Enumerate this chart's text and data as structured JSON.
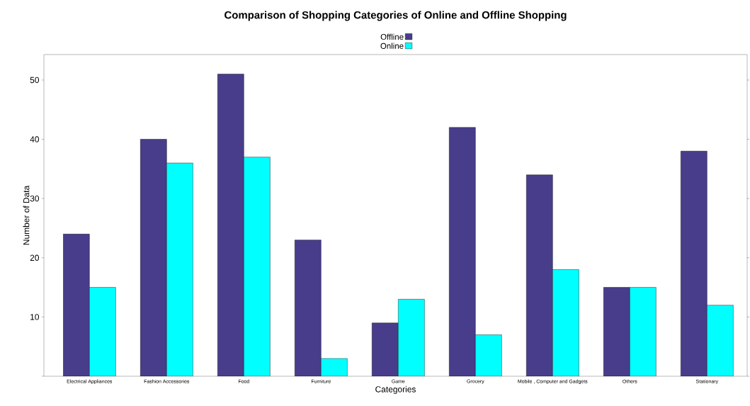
{
  "chart_data": {
    "type": "bar",
    "title": "Comparison of Shopping Categories of Online and Offline Shopping",
    "xlabel": "Categories",
    "ylabel": "Number of Data",
    "categories": [
      "Electrical Appliances",
      "Fashion Accessories",
      "Food",
      "Furniture",
      "Game",
      "Grocery",
      "Mobile , Computer and Gadgets",
      "Others",
      "Stationary"
    ],
    "series": [
      {
        "name": "Offline",
        "color": "#483d8b",
        "values": [
          24,
          40,
          51,
          23,
          9,
          42,
          34,
          15,
          38
        ]
      },
      {
        "name": "Online",
        "color": "#00ffff",
        "values": [
          15,
          36,
          37,
          3,
          13,
          7,
          18,
          15,
          12
        ]
      }
    ],
    "ylim": [
      0,
      54.3
    ],
    "yticks": [
      {
        "value": 0,
        "label": null
      },
      10,
      20,
      30,
      40,
      50
    ],
    "legend": "top"
  }
}
